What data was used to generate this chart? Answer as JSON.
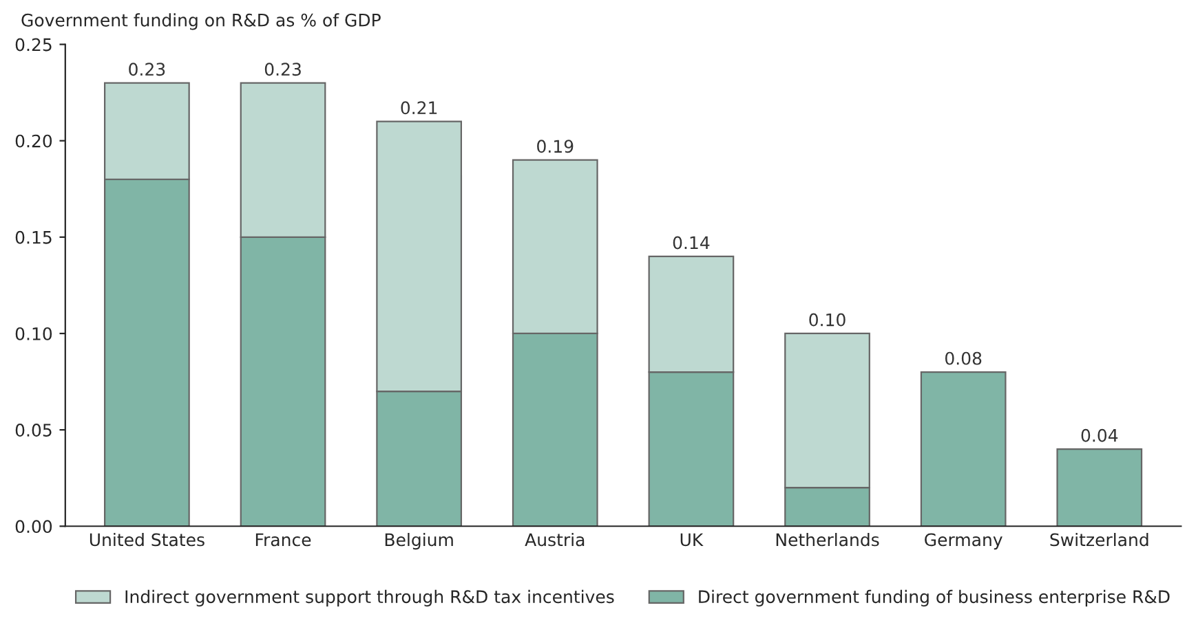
{
  "chart_data": {
    "type": "bar",
    "stacked": true,
    "ylabel": "Government funding on R&D as % of GDP",
    "categories": [
      "United States",
      "France",
      "Belgium",
      "Austria",
      "UK",
      "Netherlands",
      "Germany",
      "Switzerland"
    ],
    "series": [
      {
        "name": "Direct government funding of business enterprise R&D",
        "color": "#80b5a6",
        "values": [
          0.18,
          0.15,
          0.07,
          0.1,
          0.08,
          0.02,
          0.08,
          0.04
        ]
      },
      {
        "name": "Indirect government support through R&D tax incentives",
        "color": "#bed9d1",
        "values": [
          0.05,
          0.08,
          0.14,
          0.09,
          0.06,
          0.08,
          null,
          null
        ]
      }
    ],
    "totals": [
      "0.23",
      "0.23",
      "0.21",
      "0.19",
      "0.14",
      "0.10",
      "0.08",
      "0.04"
    ],
    "ylim": [
      0,
      0.25
    ],
    "yticks": [
      {
        "value": 0,
        "label": "0.00"
      },
      {
        "value": 0.05,
        "label": "0.05"
      },
      {
        "value": 0.1,
        "label": "0.10"
      },
      {
        "value": 0.15,
        "label": "0.15"
      },
      {
        "value": 0.2,
        "label": "0.20"
      },
      {
        "value": 0.25,
        "label": "0.25"
      }
    ],
    "grid": false,
    "legend": "bottom"
  }
}
